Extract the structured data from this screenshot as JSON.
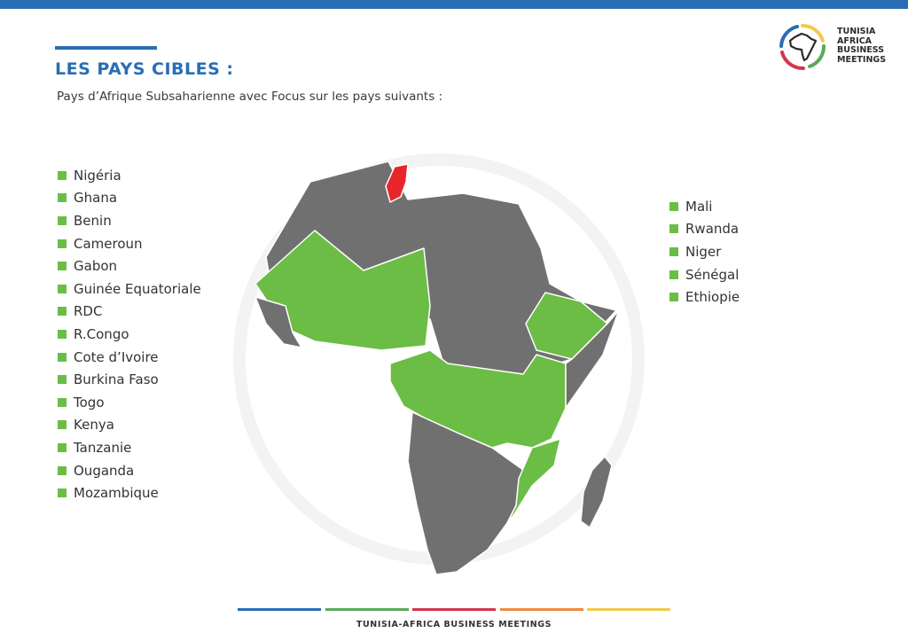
{
  "header": {
    "title": "LES PAYS CIBLES :",
    "subtitle": "Pays d’Afrique Subsaharienne avec Focus sur les pays suivants :"
  },
  "logo": {
    "line1": "TUNISIA",
    "line2": "AFRICA",
    "line3": "BUSINESS",
    "line4": "MEETINGS"
  },
  "countries_left": [
    "Nigéria",
    "Ghana",
    "Benin",
    "Cameroun",
    "Gabon",
    "Guinée Equatoriale",
    "RDC",
    "R.Congo",
    "Cote d’Ivoire",
    "Burkina Faso",
    "Togo",
    "Kenya",
    "Tanzanie",
    "Ouganda",
    "Mozambique"
  ],
  "countries_right": [
    "Mali",
    "Rwanda",
    "Niger",
    "Sénégal",
    "Ethiopie"
  ],
  "colors": {
    "accent_blue": "#2a6db4",
    "target_green": "#6bbd45",
    "home_red": "#e8252a",
    "other_gray": "#707070",
    "footer": [
      "#2a6db4",
      "#5aaa5a",
      "#d4344a",
      "#f08a3a",
      "#f2c94c"
    ]
  },
  "footer": {
    "text": "TUNISIA-AFRICA BUSINESS MEETINGS"
  }
}
